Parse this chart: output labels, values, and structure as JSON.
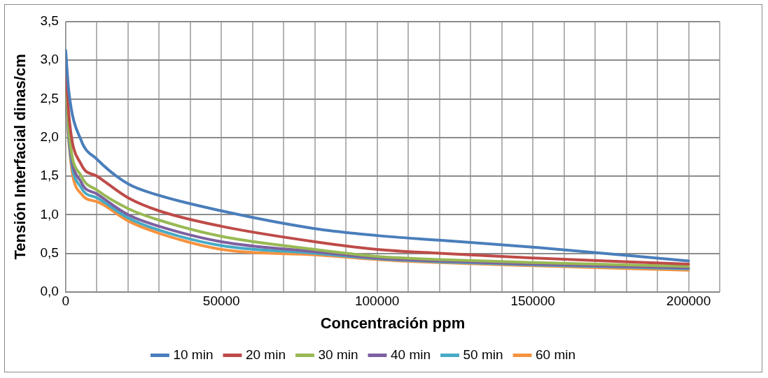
{
  "chart_data": {
    "type": "line",
    "xlabel": "Concentración ppm",
    "ylabel": "Tensión Interfacial dinas/cm",
    "xlim": [
      0,
      210000
    ],
    "xticks": [
      0,
      {
        "value": 10000,
        "label": null
      },
      {
        "value": 20000,
        "label": null
      },
      {
        "value": 30000,
        "label": null
      },
      {
        "value": 40000,
        "label": null
      },
      50000,
      {
        "value": 60000,
        "label": null
      },
      {
        "value": 70000,
        "label": null
      },
      {
        "value": 80000,
        "label": null
      },
      {
        "value": 90000,
        "label": null
      },
      100000,
      {
        "value": 110000,
        "label": null
      },
      {
        "value": 120000,
        "label": null
      },
      {
        "value": 130000,
        "label": null
      },
      {
        "value": 140000,
        "label": null
      },
      150000,
      {
        "value": 160000,
        "label": null
      },
      {
        "value": 170000,
        "label": null
      },
      {
        "value": 180000,
        "label": null
      },
      {
        "value": 190000,
        "label": null
      },
      200000,
      {
        "value": 210000,
        "label": null
      }
    ],
    "ylim": [
      0,
      3.5
    ],
    "yticks": [
      {
        "value": 0,
        "label": "0,0"
      },
      {
        "value": 0.5,
        "label": "0,5"
      },
      {
        "value": 1,
        "label": "1,0"
      },
      {
        "value": 1.5,
        "label": "1,5"
      },
      {
        "value": 2,
        "label": "2,0"
      },
      {
        "value": 2.5,
        "label": "2,5"
      },
      {
        "value": 3,
        "label": "3,0"
      },
      {
        "value": 3.5,
        "label": "3,5"
      }
    ],
    "x": [
      0,
      1000,
      5000,
      10000,
      20000,
      30000,
      50000,
      80000,
      100000,
      120000,
      150000,
      200000
    ],
    "series": [
      {
        "name": "10 min",
        "color": "#4a7ebb",
        "values": [
          3.13,
          2.6,
          1.96,
          1.72,
          1.4,
          1.25,
          1.05,
          0.82,
          0.73,
          0.67,
          0.58,
          0.4
        ]
      },
      {
        "name": "20 min",
        "color": "#be4b48",
        "values": [
          3.0,
          2.3,
          1.65,
          1.5,
          1.22,
          1.05,
          0.85,
          0.65,
          0.55,
          0.5,
          0.44,
          0.36
        ]
      },
      {
        "name": "30 min",
        "color": "#98b954",
        "values": [
          2.9,
          2.1,
          1.5,
          1.32,
          1.08,
          0.93,
          0.72,
          0.55,
          0.46,
          0.42,
          0.38,
          0.33
        ]
      },
      {
        "name": "40 min",
        "color": "#7d60a0",
        "values": [
          2.85,
          2.05,
          1.42,
          1.27,
          1.0,
          0.85,
          0.65,
          0.52,
          0.44,
          0.4,
          0.36,
          0.31
        ]
      },
      {
        "name": "50 min",
        "color": "#46aac5",
        "values": [
          2.82,
          2.0,
          1.35,
          1.22,
          0.96,
          0.8,
          0.6,
          0.5,
          0.43,
          0.39,
          0.35,
          0.3
        ]
      },
      {
        "name": "60 min",
        "color": "#f69240",
        "values": [
          2.78,
          1.95,
          1.27,
          1.17,
          0.92,
          0.76,
          0.55,
          0.48,
          0.42,
          0.38,
          0.34,
          0.28
        ]
      }
    ],
    "grid": true,
    "legend": "bottom",
    "marker": "none",
    "line_style": "solid"
  }
}
